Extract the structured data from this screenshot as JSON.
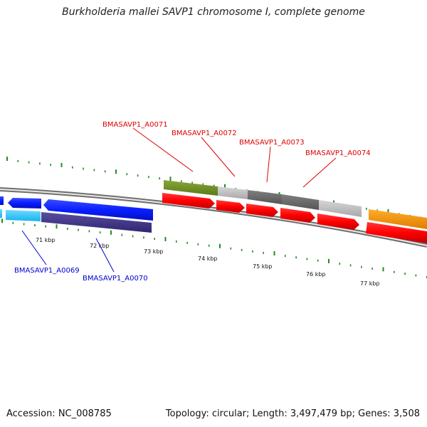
{
  "title": "Burkholderia mallei SAVP1 chromosome I, complete genome",
  "footer": {
    "accession": "Accession: NC_008785",
    "summary": "Topology: circular; Length: 3,497,479 bp; Genes: 3,508"
  },
  "colors": {
    "tick": "#228b22",
    "red_label": "#e00000",
    "blue_label": "#0000cc",
    "backbone": "#7d7d7d"
  },
  "scale_labels": [
    "71 kbp",
    "72 kbp",
    "73 kbp",
    "74 kbp",
    "75 kbp",
    "76 kbp",
    "77 kbp"
  ],
  "gene_labels_top": [
    "BMASAVP1_A0071",
    "BMASAVP1_A0072",
    "BMASAVP1_A0073",
    "BMASAVP1_A0074"
  ],
  "gene_labels_bottom": [
    "BMASAVP1_A0069",
    "BMASAVP1_A0070"
  ]
}
